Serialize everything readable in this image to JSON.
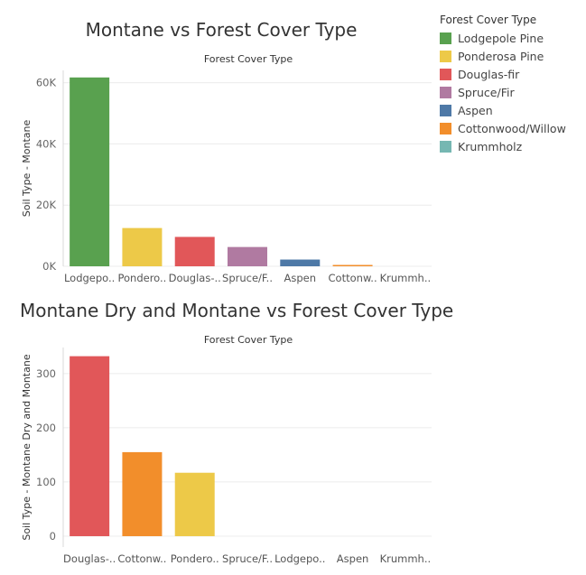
{
  "colors": {
    "Lodgepole Pine": "#59a14f",
    "Ponderosa Pine": "#edc948",
    "Douglas-fir": "#e15759",
    "Spruce/Fir": "#b07aa1",
    "Aspen": "#4e79a7",
    "Cottonwood/Willow": "#f28e2b",
    "Krummholz": "#76b7b2"
  },
  "legend": {
    "title": "Forest Cover Type",
    "items": [
      {
        "label": "Lodgepole Pine",
        "color": "#59a14f"
      },
      {
        "label": "Ponderosa Pine",
        "color": "#edc948"
      },
      {
        "label": "Douglas-fir",
        "color": "#e15759"
      },
      {
        "label": "Spruce/Fir",
        "color": "#b07aa1"
      },
      {
        "label": "Aspen",
        "color": "#4e79a7"
      },
      {
        "label": "Cottonwood/Willow",
        "color": "#f28e2b"
      },
      {
        "label": "Krummholz",
        "color": "#76b7b2"
      }
    ]
  },
  "chart_data": [
    {
      "type": "bar",
      "title": "Montane vs Forest Cover Type",
      "subtitle": "Forest Cover Type",
      "ylabel": "Soil Type - Montane",
      "categories": [
        "Lodgepole Pine",
        "Ponderosa Pine",
        "Douglas-fir",
        "Spruce/Fir",
        "Aspen",
        "Cottonwood/Willow",
        "Krummholz"
      ],
      "category_labels": [
        "Lodgepo..",
        "Pondero..",
        "Douglas-..",
        "Spruce/F..",
        "Aspen",
        "Cottonw..",
        "Krummh.."
      ],
      "values": [
        61700,
        12500,
        9600,
        6300,
        2200,
        250,
        0
      ],
      "ylim": [
        0,
        64000
      ],
      "yticks": [
        0,
        20000,
        40000,
        60000
      ],
      "ytick_labels": [
        "0K",
        "20K",
        "40K",
        "60K"
      ],
      "grid": true
    },
    {
      "type": "bar",
      "title": "Montane Dry and Montane vs Forest Cover Type",
      "subtitle": "Forest Cover Type",
      "ylabel": "Soil Type - Montane Dry and Montane",
      "categories": [
        "Douglas-fir",
        "Cottonwood/Willow",
        "Ponderosa Pine",
        "Spruce/Fir",
        "Lodgepole Pine",
        "Aspen",
        "Krummholz"
      ],
      "category_labels": [
        "Douglas-..",
        "Cottonw..",
        "Pondero..",
        "Spruce/F..",
        "Lodgepo..",
        "Aspen",
        "Krummh.."
      ],
      "values": [
        332,
        155,
        117,
        0,
        0,
        0,
        0
      ],
      "ylim": [
        -20,
        348
      ],
      "yticks": [
        0,
        100,
        200,
        300
      ],
      "ytick_labels": [
        "0",
        "100",
        "200",
        "300"
      ],
      "grid": true
    }
  ]
}
